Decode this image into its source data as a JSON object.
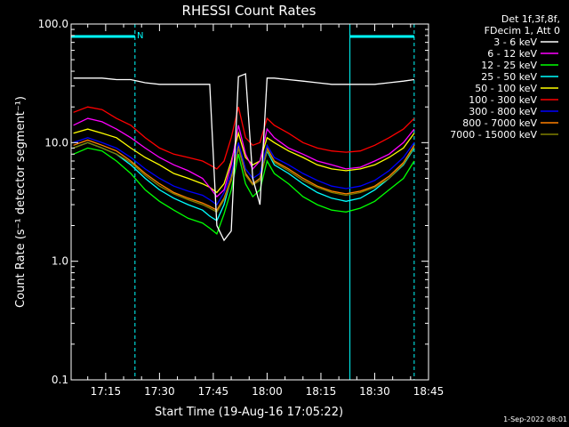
{
  "chart_data": {
    "type": "line",
    "title": "RHESSI Count Rates",
    "xlabel": "Start Time (19-Aug-16 17:05:22)",
    "ylabel": "Count Rate (s⁻¹ detector segment⁻¹)",
    "yscale": "log",
    "ylim": [
      0.1,
      100
    ],
    "xlim": [
      "17:05:22",
      "18:45"
    ],
    "x_ticks": [
      "17:15",
      "17:30",
      "17:45",
      "18:00",
      "18:15",
      "18:30",
      "18:45"
    ],
    "y_ticks": [
      "0.1",
      "1.0",
      "10.0",
      "100.0"
    ],
    "legend_header": [
      "Det 1f,3f,8f,",
      "FDecim 1, Att 0"
    ],
    "legend_position": "outside-right",
    "footer": "1-Sep-2022 08:01",
    "night_marker": "N",
    "time_markers": [
      {
        "time": "17:05:22",
        "style": "solid",
        "color": "#00ffff"
      },
      {
        "time": "17:23:10",
        "style": "dashed",
        "color": "#00ffff"
      },
      {
        "time": "18:23:05",
        "style": "solid",
        "color": "#00ffff"
      },
      {
        "time": "18:41:00",
        "style": "dashed",
        "color": "#00ffff"
      }
    ],
    "night_bars": [
      [
        "17:05:22",
        "17:23:10"
      ],
      [
        "18:23:05",
        "18:41:00"
      ]
    ],
    "time_points": [
      "17:06",
      "17:10",
      "17:14",
      "17:18",
      "17:22",
      "17:26",
      "17:30",
      "17:34",
      "17:38",
      "17:42",
      "17:44",
      "17:46",
      "17:48",
      "17:50",
      "17:52",
      "17:54",
      "17:56",
      "17:58",
      "18:00",
      "18:02",
      "18:06",
      "18:10",
      "18:14",
      "18:18",
      "18:22",
      "18:26",
      "18:30",
      "18:34",
      "18:38",
      "18:41"
    ],
    "series": [
      {
        "name": "3 - 6 keV",
        "color": "#ffffff",
        "values": [
          35,
          35,
          35,
          34,
          34,
          32,
          31,
          31,
          31,
          31,
          31,
          2.0,
          1.5,
          1.8,
          36,
          38,
          5,
          3,
          35,
          35,
          34,
          33,
          32,
          31,
          31,
          31,
          31,
          32,
          33,
          34
        ]
      },
      {
        "name": "6 - 12 keV",
        "color": "#ff00ff",
        "values": [
          14,
          16,
          15,
          13,
          11,
          9.0,
          7.5,
          6.5,
          5.8,
          5.0,
          4.2,
          3.5,
          4.0,
          6.5,
          14,
          8,
          6,
          7,
          13,
          11,
          9,
          8,
          7,
          6.5,
          6,
          6.2,
          7,
          8,
          10,
          13
        ]
      },
      {
        "name": "12 - 25 keV",
        "color": "#00ff00",
        "values": [
          8,
          9,
          8.5,
          7,
          5.5,
          4,
          3.2,
          2.7,
          2.3,
          2.1,
          1.9,
          1.7,
          2.5,
          4,
          8,
          4.5,
          3.5,
          4,
          7,
          5.5,
          4.5,
          3.5,
          3,
          2.7,
          2.6,
          2.8,
          3.2,
          4,
          5,
          7
        ]
      },
      {
        "name": "25 - 50 keV",
        "color": "#00ffff",
        "values": [
          9,
          10,
          9,
          8,
          6.5,
          5,
          4,
          3.4,
          3,
          2.7,
          2.4,
          2.2,
          3,
          5,
          9,
          5.5,
          4.5,
          5,
          8.5,
          6.5,
          5.5,
          4.5,
          3.8,
          3.4,
          3.2,
          3.4,
          4,
          5,
          6.5,
          9
        ]
      },
      {
        "name": "50 - 100 keV",
        "color": "#ffff00",
        "values": [
          12,
          13,
          12,
          11,
          9,
          7.5,
          6.5,
          5.5,
          5,
          4.5,
          4.2,
          3.8,
          4.5,
          7,
          12,
          7.5,
          6.5,
          7,
          11,
          10,
          8.5,
          7.5,
          6.5,
          6,
          5.8,
          6,
          6.5,
          7.5,
          9,
          12
        ]
      },
      {
        "name": "100 - 300 keV",
        "color": "#ff0000",
        "values": [
          18,
          20,
          19,
          16,
          14,
          11,
          9,
          8,
          7.5,
          7,
          6.5,
          6,
          7,
          11,
          20,
          11,
          9.5,
          10,
          16,
          14,
          12,
          10,
          9,
          8.5,
          8.3,
          8.5,
          9.5,
          11,
          13,
          16
        ]
      },
      {
        "name": "300 - 800 keV",
        "color": "#0000ff",
        "values": [
          10,
          11,
          10,
          9,
          7.5,
          6,
          5,
          4.3,
          3.9,
          3.6,
          3.3,
          3,
          3.8,
          5.5,
          10,
          6,
          5,
          5.5,
          9.5,
          7.5,
          6.5,
          5.5,
          4.8,
          4.3,
          4.1,
          4.3,
          4.8,
          5.8,
          7.5,
          10
        ]
      },
      {
        "name": "800 - 7000 keV",
        "color": "#ff8000",
        "values": [
          9.5,
          10.5,
          9.5,
          8.5,
          7,
          5.5,
          4.5,
          3.8,
          3.4,
          3.1,
          2.9,
          2.7,
          3.4,
          5,
          9.5,
          5.5,
          4.5,
          5,
          9,
          7,
          6,
          5,
          4.3,
          3.9,
          3.7,
          3.9,
          4.3,
          5.2,
          6.8,
          9.5
        ]
      },
      {
        "name": "7000 - 15000 keV",
        "color": "#808000",
        "values": [
          9,
          10,
          9,
          8,
          6.8,
          5.3,
          4.3,
          3.7,
          3.3,
          3,
          2.8,
          2.6,
          3.3,
          4.8,
          9,
          5.3,
          4.4,
          4.8,
          8.7,
          6.8,
          5.8,
          4.8,
          4.2,
          3.8,
          3.6,
          3.8,
          4.2,
          5,
          6.6,
          9.2
        ]
      }
    ]
  }
}
